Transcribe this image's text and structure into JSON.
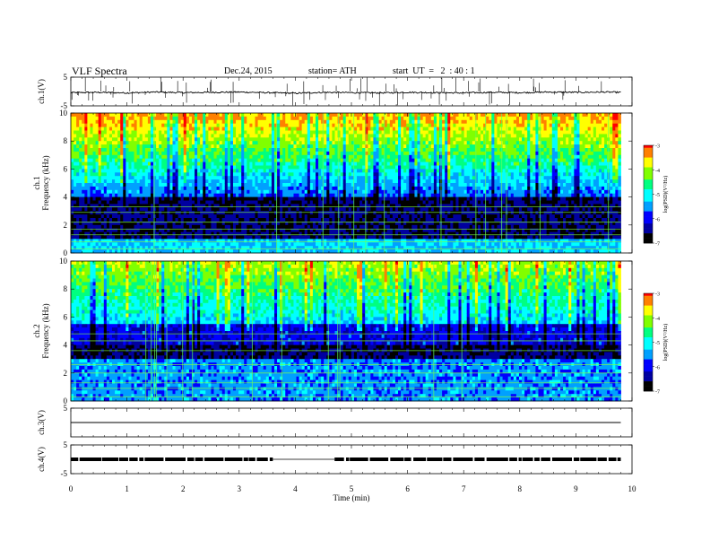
{
  "header": {
    "title": "VLF Spectra",
    "date": "Dec.24, 2015",
    "station": "station= ATH",
    "start": "start  UT  =   2  : 40 : 1"
  },
  "chart_data": [
    {
      "type": "line",
      "panel": "ch1",
      "ylabel": "ch.1(V)",
      "ylim": [
        -5,
        5
      ],
      "y_ticks": [
        "5",
        "-5"
      ],
      "x": [
        0,
        0.5,
        1,
        1.5,
        2,
        2.5,
        3,
        3.5,
        4,
        4.5,
        5,
        5.5,
        6,
        6.5,
        7,
        7.5,
        8,
        8.5,
        9,
        9.5,
        9.8
      ],
      "values": [
        -0.4,
        -0.3,
        -0.5,
        -0.2,
        -0.4,
        -0.3,
        -0.2,
        -0.4,
        -0.6,
        -0.3,
        -0.4,
        -0.5,
        -0.3,
        -0.4,
        -0.5,
        -0.3,
        -0.4,
        -0.2,
        -0.3,
        -0.2,
        -0.3
      ]
    },
    {
      "type": "heatmap",
      "panel": "ch1",
      "ylabel": "ch.1\nFrequency (kHz)",
      "ylim": [
        0,
        10
      ],
      "y_ticks": [
        "10",
        "8",
        "6",
        "4",
        "2",
        "0"
      ],
      "colorbar": {
        "label": "log(PSD)(V²/Hz)",
        "range": [
          -7,
          -3
        ],
        "ticks": [
          "-3",
          "-4",
          "-5",
          "-6",
          "-7"
        ]
      }
    },
    {
      "type": "heatmap",
      "panel": "ch2",
      "ylabel": "ch.2\nFrequency (kHz)",
      "ylim": [
        0,
        10
      ],
      "y_ticks": [
        "10",
        "8",
        "6",
        "4",
        "2",
        "0"
      ],
      "colorbar": {
        "label": "log(PSD)(V²/Hz)",
        "range": [
          -7,
          -3
        ],
        "ticks": [
          "-3",
          "-4",
          "-5",
          "-6",
          "-7"
        ]
      }
    },
    {
      "type": "line",
      "panel": "ch3",
      "ylabel": "ch.3(V)",
      "ylim": [
        -5,
        5
      ],
      "y_ticks": [
        "5"
      ],
      "x": [
        0,
        9.8
      ],
      "values": [
        0,
        0
      ]
    },
    {
      "type": "line",
      "panel": "ch4",
      "ylabel": "ch.4(V)",
      "ylim": [
        -5,
        5
      ],
      "y_ticks": [
        "5",
        "-5"
      ],
      "x": [
        0,
        3.6,
        4.7,
        9.8
      ],
      "values": [
        0,
        0,
        0,
        0
      ]
    }
  ],
  "x_axis": {
    "label": "Time (min)",
    "range": [
      0,
      10
    ],
    "ticks": [
      "0",
      "1",
      "2",
      "3",
      "4",
      "5",
      "6",
      "7",
      "8",
      "9",
      "10"
    ]
  },
  "colors": {
    "scale": [
      "#000000",
      "#0000a0",
      "#0000ff",
      "#00a0ff",
      "#00ffff",
      "#00ff80",
      "#80ff00",
      "#ffff00",
      "#ff8000",
      "#ff0000",
      "#ffffff"
    ]
  }
}
